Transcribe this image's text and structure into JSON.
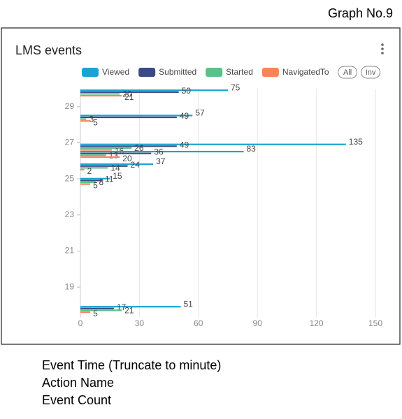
{
  "header": "Graph No.9",
  "footer_lines": [
    "Event Time (Truncate to minute)",
    "Action Name",
    "Event Count"
  ],
  "chart_data": {
    "type": "hbar",
    "title": "LMS events",
    "buttons": [
      "All",
      "Inv"
    ],
    "y": [
      29.8,
      28.4,
      26.8,
      26.4,
      25.7,
      24.9,
      17.8
    ],
    "series": [
      {
        "name": "Viewed",
        "color": "#1ba3d1",
        "values": [
          75,
          57,
          135,
          83,
          37,
          15,
          51
        ]
      },
      {
        "name": "Submitted",
        "color": "#3b4a80",
        "values": [
          50,
          49,
          49,
          36,
          24,
          11,
          17
        ]
      },
      {
        "name": "Started",
        "color": "#5cc08a",
        "values": [
          20,
          3,
          26,
          13,
          14,
          8,
          21
        ]
      },
      {
        "name": "NavigatedTo",
        "color": "#f9845a",
        "values": [
          21,
          5,
          16,
          20,
          2,
          5,
          5
        ]
      }
    ],
    "xlim": [
      0,
      150
    ],
    "xticks": [
      0,
      30,
      60,
      90,
      120,
      150
    ],
    "ylim": [
      17.3,
      30
    ],
    "yticks": [
      19,
      21,
      23,
      25,
      27,
      29
    ],
    "grid": true
  }
}
